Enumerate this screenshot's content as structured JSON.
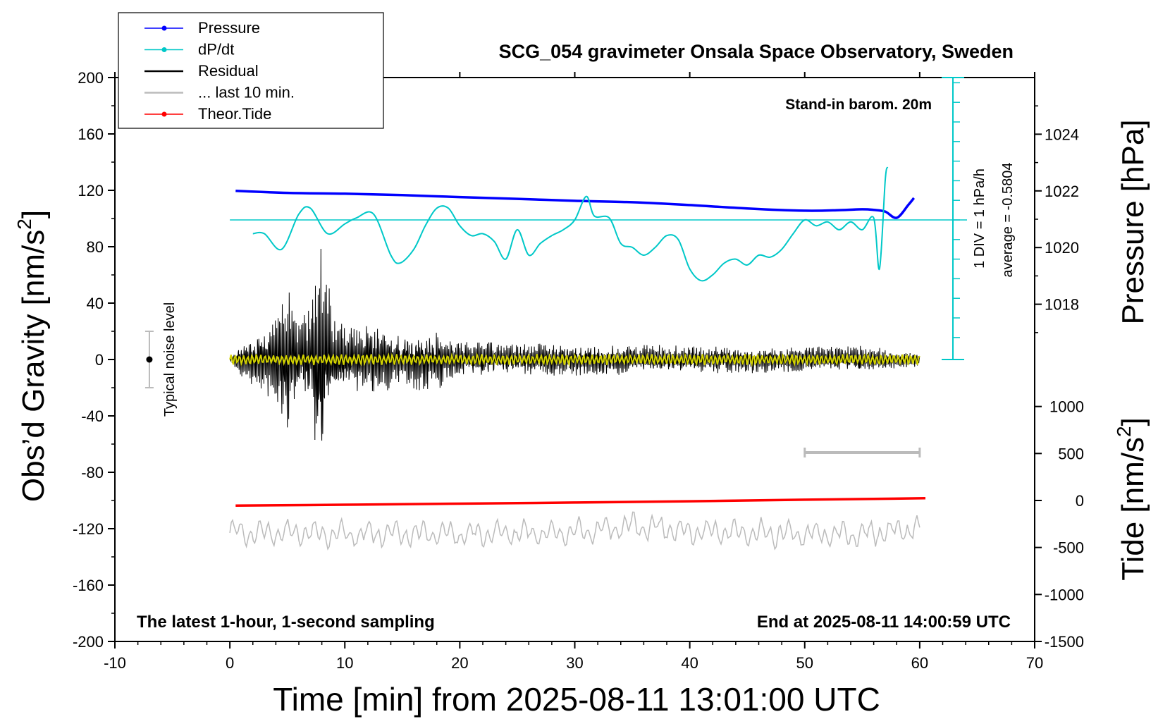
{
  "chart_data": {
    "type": "line",
    "title": "SCG_054 gravimeter Onsala Space Observatory, Sweden",
    "annotations": {
      "barometer": "Stand-in barom. 20m",
      "window": "The latest 1-hour, 1-second sampling",
      "end": "End at 2025-08-11 14:00:59 UTC",
      "noise": "Typical noise level",
      "div_label": "1 DIV = 1 hPa/h",
      "average": "average = -0.5804"
    },
    "xlabel": "Time [min] from 2025-08-11 13:01:00 UTC",
    "ylabel_left": "Obs’d Gravity [nm/s",
    "ylabel_left_sup": "2",
    "ylabel_left_close": "]",
    "ylabel_right_pressure": "Pressure [hPa]",
    "ylabel_right_tide": "Tide [nm/s",
    "ylabel_right_tide_sup": "2",
    "ylabel_right_tide_close": "]",
    "xlim": [
      -10,
      70
    ],
    "ylim": [
      -200,
      200
    ],
    "xticks": [
      -10,
      0,
      10,
      20,
      30,
      40,
      50,
      60,
      70
    ],
    "yticks": [
      -200,
      -160,
      -120,
      -80,
      -40,
      0,
      40,
      80,
      120,
      160,
      200
    ],
    "pressure_axis": {
      "ticks": [
        1018,
        1020,
        1022,
        1024
      ],
      "ylim": [
        1016,
        1026
      ]
    },
    "tide_axis": {
      "ticks": [
        -1500,
        -1000,
        -500,
        0,
        500,
        1000
      ],
      "ylim": [
        -1500,
        1500
      ]
    },
    "legend": {
      "placement": "top-left",
      "entries": [
        {
          "label": "Pressure",
          "color": "#0000ff",
          "marker": true
        },
        {
          "label": "dP/dt",
          "color": "#00c8c8",
          "marker": true
        },
        {
          "label": "Residual",
          "color": "#000000",
          "marker": false
        },
        {
          "label": "... last 10 min.",
          "color": "#bbbbbb",
          "marker": false
        },
        {
          "label": "Theor.Tide",
          "color": "#ff0000",
          "marker": true
        }
      ]
    },
    "series": [
      {
        "name": "Pressure",
        "color": "#0000ff",
        "axis": "pressure",
        "x": [
          0.5,
          5,
          10,
          15,
          20,
          25,
          30,
          35,
          40,
          45,
          50,
          53,
          55,
          56,
          57,
          58,
          59,
          59.5
        ],
        "y": [
          1022.0,
          1021.93,
          1021.9,
          1021.85,
          1021.78,
          1021.72,
          1021.65,
          1021.6,
          1021.5,
          1021.38,
          1021.3,
          1021.32,
          1021.35,
          1021.33,
          1021.27,
          1021.05,
          1021.5,
          1021.75
        ]
      },
      {
        "name": "dP/dt",
        "color": "#00c8c8",
        "axis": "dpdt",
        "x": [
          2,
          3,
          4.5,
          6,
          7,
          8.5,
          10,
          11,
          12.5,
          14,
          14.8,
          16,
          17,
          18,
          19,
          20,
          21,
          22,
          23,
          24,
          25,
          26,
          27,
          28,
          29,
          30,
          31,
          31.7,
          33,
          34,
          35,
          36,
          37,
          38,
          39,
          40,
          41,
          42,
          43,
          44,
          45,
          46,
          47,
          48,
          49,
          50,
          51,
          52,
          53,
          54,
          55,
          56,
          56.5,
          57,
          57.2
        ],
        "y": [
          -0.7,
          -0.7,
          -1.5,
          0.3,
          0.6,
          -0.7,
          -0.2,
          0.1,
          0.3,
          -1.8,
          -2.2,
          -1.5,
          -0.3,
          0.6,
          0.6,
          -0.3,
          -0.8,
          -0.7,
          -1.1,
          -2.0,
          -0.5,
          -1.8,
          -1.2,
          -0.8,
          -0.5,
          0.0,
          1.2,
          0.2,
          0.1,
          -1.2,
          -1.4,
          -1.8,
          -1.4,
          -0.8,
          -1.0,
          -2.5,
          -3.1,
          -2.8,
          -2.2,
          -2.0,
          -2.3,
          -1.8,
          -1.9,
          -1.5,
          -0.7,
          0.0,
          -0.3,
          -0.1,
          -0.5,
          -0.1,
          -0.5,
          0.1,
          -2.5,
          2.0,
          2.7
        ]
      },
      {
        "name": "Residual",
        "color": "#000000",
        "axis": "gravity",
        "x": [
          0,
          1,
          2,
          3,
          4,
          5,
          6,
          7,
          7.6,
          8,
          9,
          10,
          12,
          14,
          16,
          18,
          20,
          25,
          30,
          35,
          40,
          45,
          50,
          55,
          60
        ],
        "y": [
          0,
          15,
          18,
          30,
          40,
          60,
          25,
          40,
          95,
          90,
          30,
          25,
          25,
          22,
          22,
          22,
          14,
          12,
          12,
          11,
          10,
          10,
          9,
          10,
          5
        ]
      },
      {
        "name": "... last 10 min.",
        "color": "#bbbbbb",
        "axis": "gravity",
        "x": [
          0,
          5,
          10,
          15,
          20,
          25,
          30,
          35,
          40,
          45,
          50,
          55,
          60
        ],
        "y": [
          -123,
          -123,
          -124,
          -123,
          -124,
          -123,
          -123,
          -118,
          -122,
          -123,
          -124,
          -124,
          -120
        ]
      },
      {
        "name": "Theor.Tide",
        "color": "#ff0000",
        "axis": "tide",
        "x": [
          0.5,
          10,
          20,
          30,
          40,
          50,
          60.5
        ],
        "y": [
          -55,
          -45,
          -34,
          -22,
          -8,
          8,
          24
        ]
      }
    ],
    "noise_bar": {
      "x": -7,
      "y": 0,
      "low": -20,
      "high": 20
    },
    "last10_bar": {
      "x_start": 50,
      "x_end": 60
    }
  }
}
